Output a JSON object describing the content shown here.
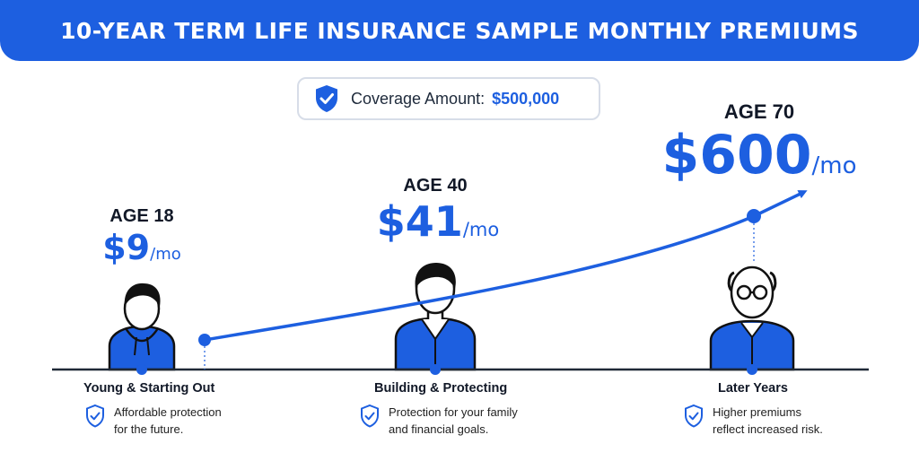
{
  "header": {
    "title": "10-YEAR TERM LIFE INSURANCE SAMPLE MONTHLY PREMIUMS"
  },
  "coverage": {
    "label": "Coverage Amount:",
    "value": "$500,000",
    "icon": "shield-check-icon"
  },
  "colors": {
    "accent": "#1d5fe0",
    "text": "#111827",
    "baseline": "#1f2937"
  },
  "chart_data": {
    "type": "line",
    "x": [
      18,
      40,
      70
    ],
    "values": [
      9,
      41,
      600
    ],
    "points": [
      {
        "age_label": "AGE 18",
        "price": "$9",
        "unit": "/mo",
        "stage": "Young & Starting Out",
        "desc": [
          "Affordable protection",
          "for the future."
        ]
      },
      {
        "age_label": "AGE 40",
        "price": "$41",
        "unit": "/mo",
        "stage": "Building & Protecting",
        "desc": [
          "Protection for your family",
          "and financial goals."
        ]
      },
      {
        "age_label": "AGE 70",
        "price": "$600",
        "unit": "/mo",
        "stage": "Later Years",
        "desc": [
          "Higher premiums",
          "reflect increased risk."
        ]
      }
    ]
  }
}
